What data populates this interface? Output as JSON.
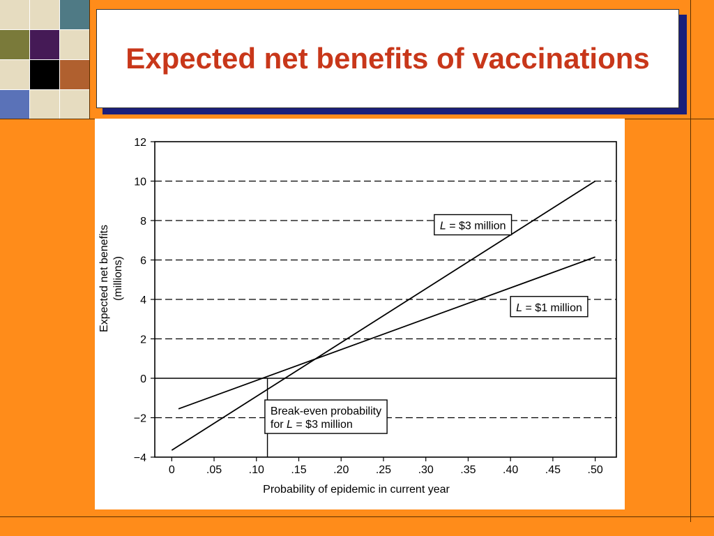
{
  "slide": {
    "title": "Expected net benefits of vaccinations",
    "colors": {
      "background": "#ff8c1a",
      "title_text": "#c8371a",
      "title_shadow": "#1b1f7a",
      "tiles": [
        "#e6dcc0",
        "#e6dcc0",
        "#4f7a85",
        "#7a7a3a",
        "#451a56",
        "#e6dcc0",
        "#e6dcc0",
        "#000000",
        "#b0602f",
        "#5a72b8",
        "#e6dcc0",
        "#e6dcc0"
      ]
    }
  },
  "chart_data": {
    "type": "line",
    "xlabel": "Probability of epidemic in current year",
    "ylabel_line1": "Expected net benefits",
    "ylabel_line2": "(millions)",
    "xlim": [
      -0.02,
      0.525
    ],
    "ylim": [
      -4,
      12
    ],
    "x_ticks": [
      0,
      0.05,
      0.1,
      0.15,
      0.2,
      0.25,
      0.3,
      0.35,
      0.4,
      0.45,
      0.5
    ],
    "x_tick_labels": [
      "0",
      ".05",
      ".10",
      ".15",
      ".20",
      ".25",
      ".30",
      ".35",
      ".40",
      ".45",
      ".50"
    ],
    "y_ticks": [
      -4,
      -2,
      0,
      2,
      4,
      6,
      8,
      10,
      12
    ],
    "y_tick_labels": [
      "−4",
      "−2",
      "0",
      "2",
      "4",
      "6",
      "8",
      "10",
      "12"
    ],
    "dashed_gridlines_at": [
      -2,
      2,
      4,
      6,
      8,
      10
    ],
    "solid_gridlines_at": [
      0
    ],
    "series": [
      {
        "name": "L = $3 million",
        "name_prefix": "L",
        "name_rest": " = $3 million",
        "x": [
          0.0,
          0.5
        ],
        "y": [
          -3.65,
          10.0
        ]
      },
      {
        "name": "L = $1 million",
        "name_prefix": "L",
        "name_rest": " = $1 million",
        "x": [
          0.008,
          0.5
        ],
        "y": [
          -1.55,
          6.15
        ]
      }
    ],
    "annotations": [
      {
        "id": "l3",
        "lines": [
          {
            "italic": "L",
            "rest": " = $3 million"
          }
        ],
        "x": 0.31,
        "y": 8.3
      },
      {
        "id": "l1",
        "lines": [
          {
            "italic": "L",
            "rest": " = $1 million"
          }
        ],
        "x": 0.4,
        "y": 4.15
      },
      {
        "id": "breakeven",
        "lines": [
          {
            "italic": "",
            "rest": "Break-even probability"
          },
          {
            "italic": "L",
            "pre": "for ",
            "rest": " = $3 million"
          }
        ],
        "x": 0.11,
        "y": -1.1
      }
    ],
    "breakeven_x": 0.113,
    "breakeven_line_y": [
      -4,
      0
    ]
  }
}
